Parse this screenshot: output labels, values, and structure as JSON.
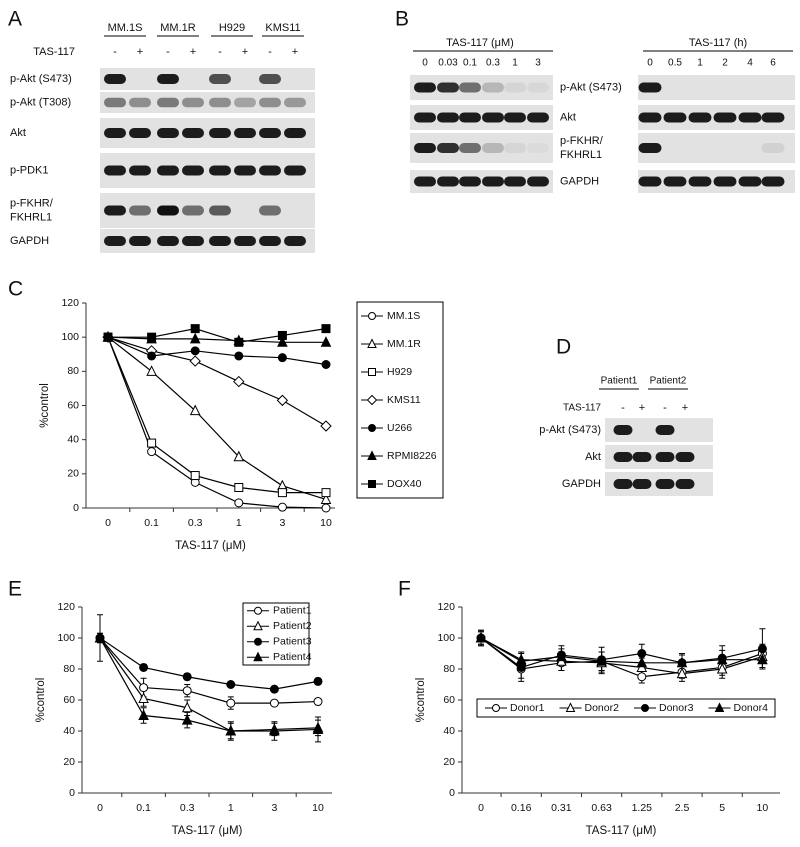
{
  "blots": {
    "A": {
      "letter": "A",
      "groups": [
        "MM.1S",
        "MM.1R",
        "H929",
        "KMS11"
      ],
      "treatment": "TAS-117",
      "signs": [
        "-",
        "+",
        "-",
        "+",
        "-",
        "+",
        "-",
        "+"
      ],
      "rows": [
        "p-Akt (S473)",
        "p-Akt (T308)",
        "Akt",
        "p-PDK1",
        [
          "p-FKHR/",
          "FKHRL1"
        ],
        "GAPDH"
      ]
    },
    "B": {
      "letter": "B",
      "left": {
        "title": "TAS-117 (μM)",
        "lanes": [
          "0",
          "0.03",
          "0.1",
          "0.3",
          "1",
          "3"
        ]
      },
      "right": {
        "title": "TAS-117 (h)",
        "lanes": [
          "0",
          "0.5",
          "1",
          "2",
          "4",
          "6"
        ]
      },
      "rows": [
        "p-Akt (S473)",
        "Akt",
        [
          "p-FKHR/",
          "FKHRL1"
        ],
        "GAPDH"
      ]
    },
    "D": {
      "letter": "D",
      "groups": [
        "Patient1",
        "Patient2"
      ],
      "treatment": "TAS-117",
      "signs": [
        "-",
        "+",
        "-",
        "+"
      ],
      "rows": [
        "p-Akt (S473)",
        "Akt",
        "GAPDH"
      ]
    }
  },
  "chart_data": [
    {
      "type": "line",
      "letter": "C",
      "ylabel": "%control",
      "xlabel": "TAS-117 (μM)",
      "categories": [
        "0",
        "0.1",
        "0.3",
        "1",
        "3",
        "10"
      ],
      "ylim": [
        0,
        120
      ],
      "yticks": [
        0,
        20,
        40,
        60,
        80,
        100,
        120
      ],
      "legend": "right",
      "series": [
        {
          "name": "MM.1S",
          "color": "#000000",
          "marker": "circle",
          "filled": false,
          "values": [
            100,
            33,
            15,
            3,
            0.5,
            0
          ]
        },
        {
          "name": "MM.1R",
          "color": "#000000",
          "marker": "triangle",
          "filled": false,
          "values": [
            100,
            80,
            57,
            30,
            13,
            5
          ]
        },
        {
          "name": "H929",
          "color": "#000000",
          "marker": "square",
          "filled": false,
          "values": [
            100,
            38,
            19,
            12,
            9,
            9
          ]
        },
        {
          "name": "KMS11",
          "color": "#000000",
          "marker": "diamond",
          "filled": false,
          "values": [
            100,
            92,
            86,
            74,
            63,
            48
          ]
        },
        {
          "name": "U266",
          "color": "#000000",
          "marker": "circle",
          "filled": true,
          "values": [
            100,
            89,
            92,
            89,
            88,
            84
          ]
        },
        {
          "name": "RPMI8226",
          "color": "#000000",
          "marker": "triangle",
          "filled": true,
          "values": [
            100,
            99,
            99,
            98,
            97,
            97
          ]
        },
        {
          "name": "DOX40",
          "color": "#000000",
          "marker": "square",
          "filled": true,
          "values": [
            100,
            100,
            105,
            97,
            101,
            105
          ]
        }
      ]
    },
    {
      "type": "line",
      "letter": "E",
      "ylabel": "%control",
      "xlabel": "TAS-117 (μM)",
      "categories": [
        "0",
        "0.1",
        "0.3",
        "1",
        "3",
        "10"
      ],
      "ylim": [
        0,
        120
      ],
      "yticks": [
        0,
        20,
        40,
        60,
        80,
        100,
        120
      ],
      "legend": "upper right",
      "series": [
        {
          "name": "Patient1",
          "color": "#000000",
          "marker": "circle",
          "filled": false,
          "values": [
            100,
            68,
            66,
            58,
            58,
            59
          ],
          "errors": [
            3,
            6,
            4,
            4,
            1,
            2
          ]
        },
        {
          "name": "Patient2",
          "color": "#000000",
          "marker": "triangle",
          "filled": false,
          "values": [
            100,
            61,
            55,
            40,
            41,
            42
          ],
          "errors": [
            3,
            5,
            5,
            5,
            4,
            5
          ]
        },
        {
          "name": "Patient3",
          "color": "#000000",
          "marker": "circle",
          "filled": true,
          "values": [
            100,
            81,
            75,
            70,
            67,
            72
          ],
          "errors": [
            3,
            2,
            2,
            1,
            1,
            2
          ]
        },
        {
          "name": "Patient4",
          "color": "#000000",
          "marker": "triangle",
          "filled": true,
          "values": [
            100,
            50,
            47,
            40,
            40,
            41
          ],
          "errors": [
            15,
            5,
            5,
            6,
            6,
            8
          ]
        }
      ]
    },
    {
      "type": "line",
      "letter": "F",
      "ylabel": "%control",
      "xlabel": "TAS-117 (μM)",
      "categories": [
        "0",
        "0.16",
        "0.31",
        "0.63",
        "1.25",
        "2.5",
        "5",
        "10"
      ],
      "ylim": [
        0,
        120
      ],
      "yticks": [
        0,
        20,
        40,
        60,
        80,
        100,
        120
      ],
      "legend": "lower center",
      "series": [
        {
          "name": "Donor1",
          "color": "#000000",
          "marker": "circle",
          "filled": false,
          "values": [
            100,
            80,
            84,
            85,
            75,
            78,
            81,
            90
          ],
          "errors": [
            4,
            6,
            5,
            6,
            4,
            4,
            5,
            6
          ]
        },
        {
          "name": "Donor2",
          "color": "#000000",
          "marker": "triangle",
          "filled": false,
          "values": [
            100,
            86,
            85,
            84,
            81,
            77,
            80,
            88
          ],
          "errors": [
            4,
            5,
            6,
            7,
            6,
            5,
            6,
            7
          ]
        },
        {
          "name": "Donor3",
          "color": "#000000",
          "marker": "circle",
          "filled": true,
          "values": [
            100,
            81,
            89,
            86,
            90,
            84,
            87,
            93
          ],
          "errors": [
            5,
            9,
            6,
            8,
            6,
            6,
            8,
            13
          ]
        },
        {
          "name": "Donor4",
          "color": "#000000",
          "marker": "triangle",
          "filled": true,
          "values": [
            100,
            85,
            88,
            85,
            84,
            84,
            86,
            86
          ],
          "errors": [
            5,
            6,
            5,
            6,
            5,
            5,
            6,
            6
          ]
        }
      ]
    }
  ]
}
